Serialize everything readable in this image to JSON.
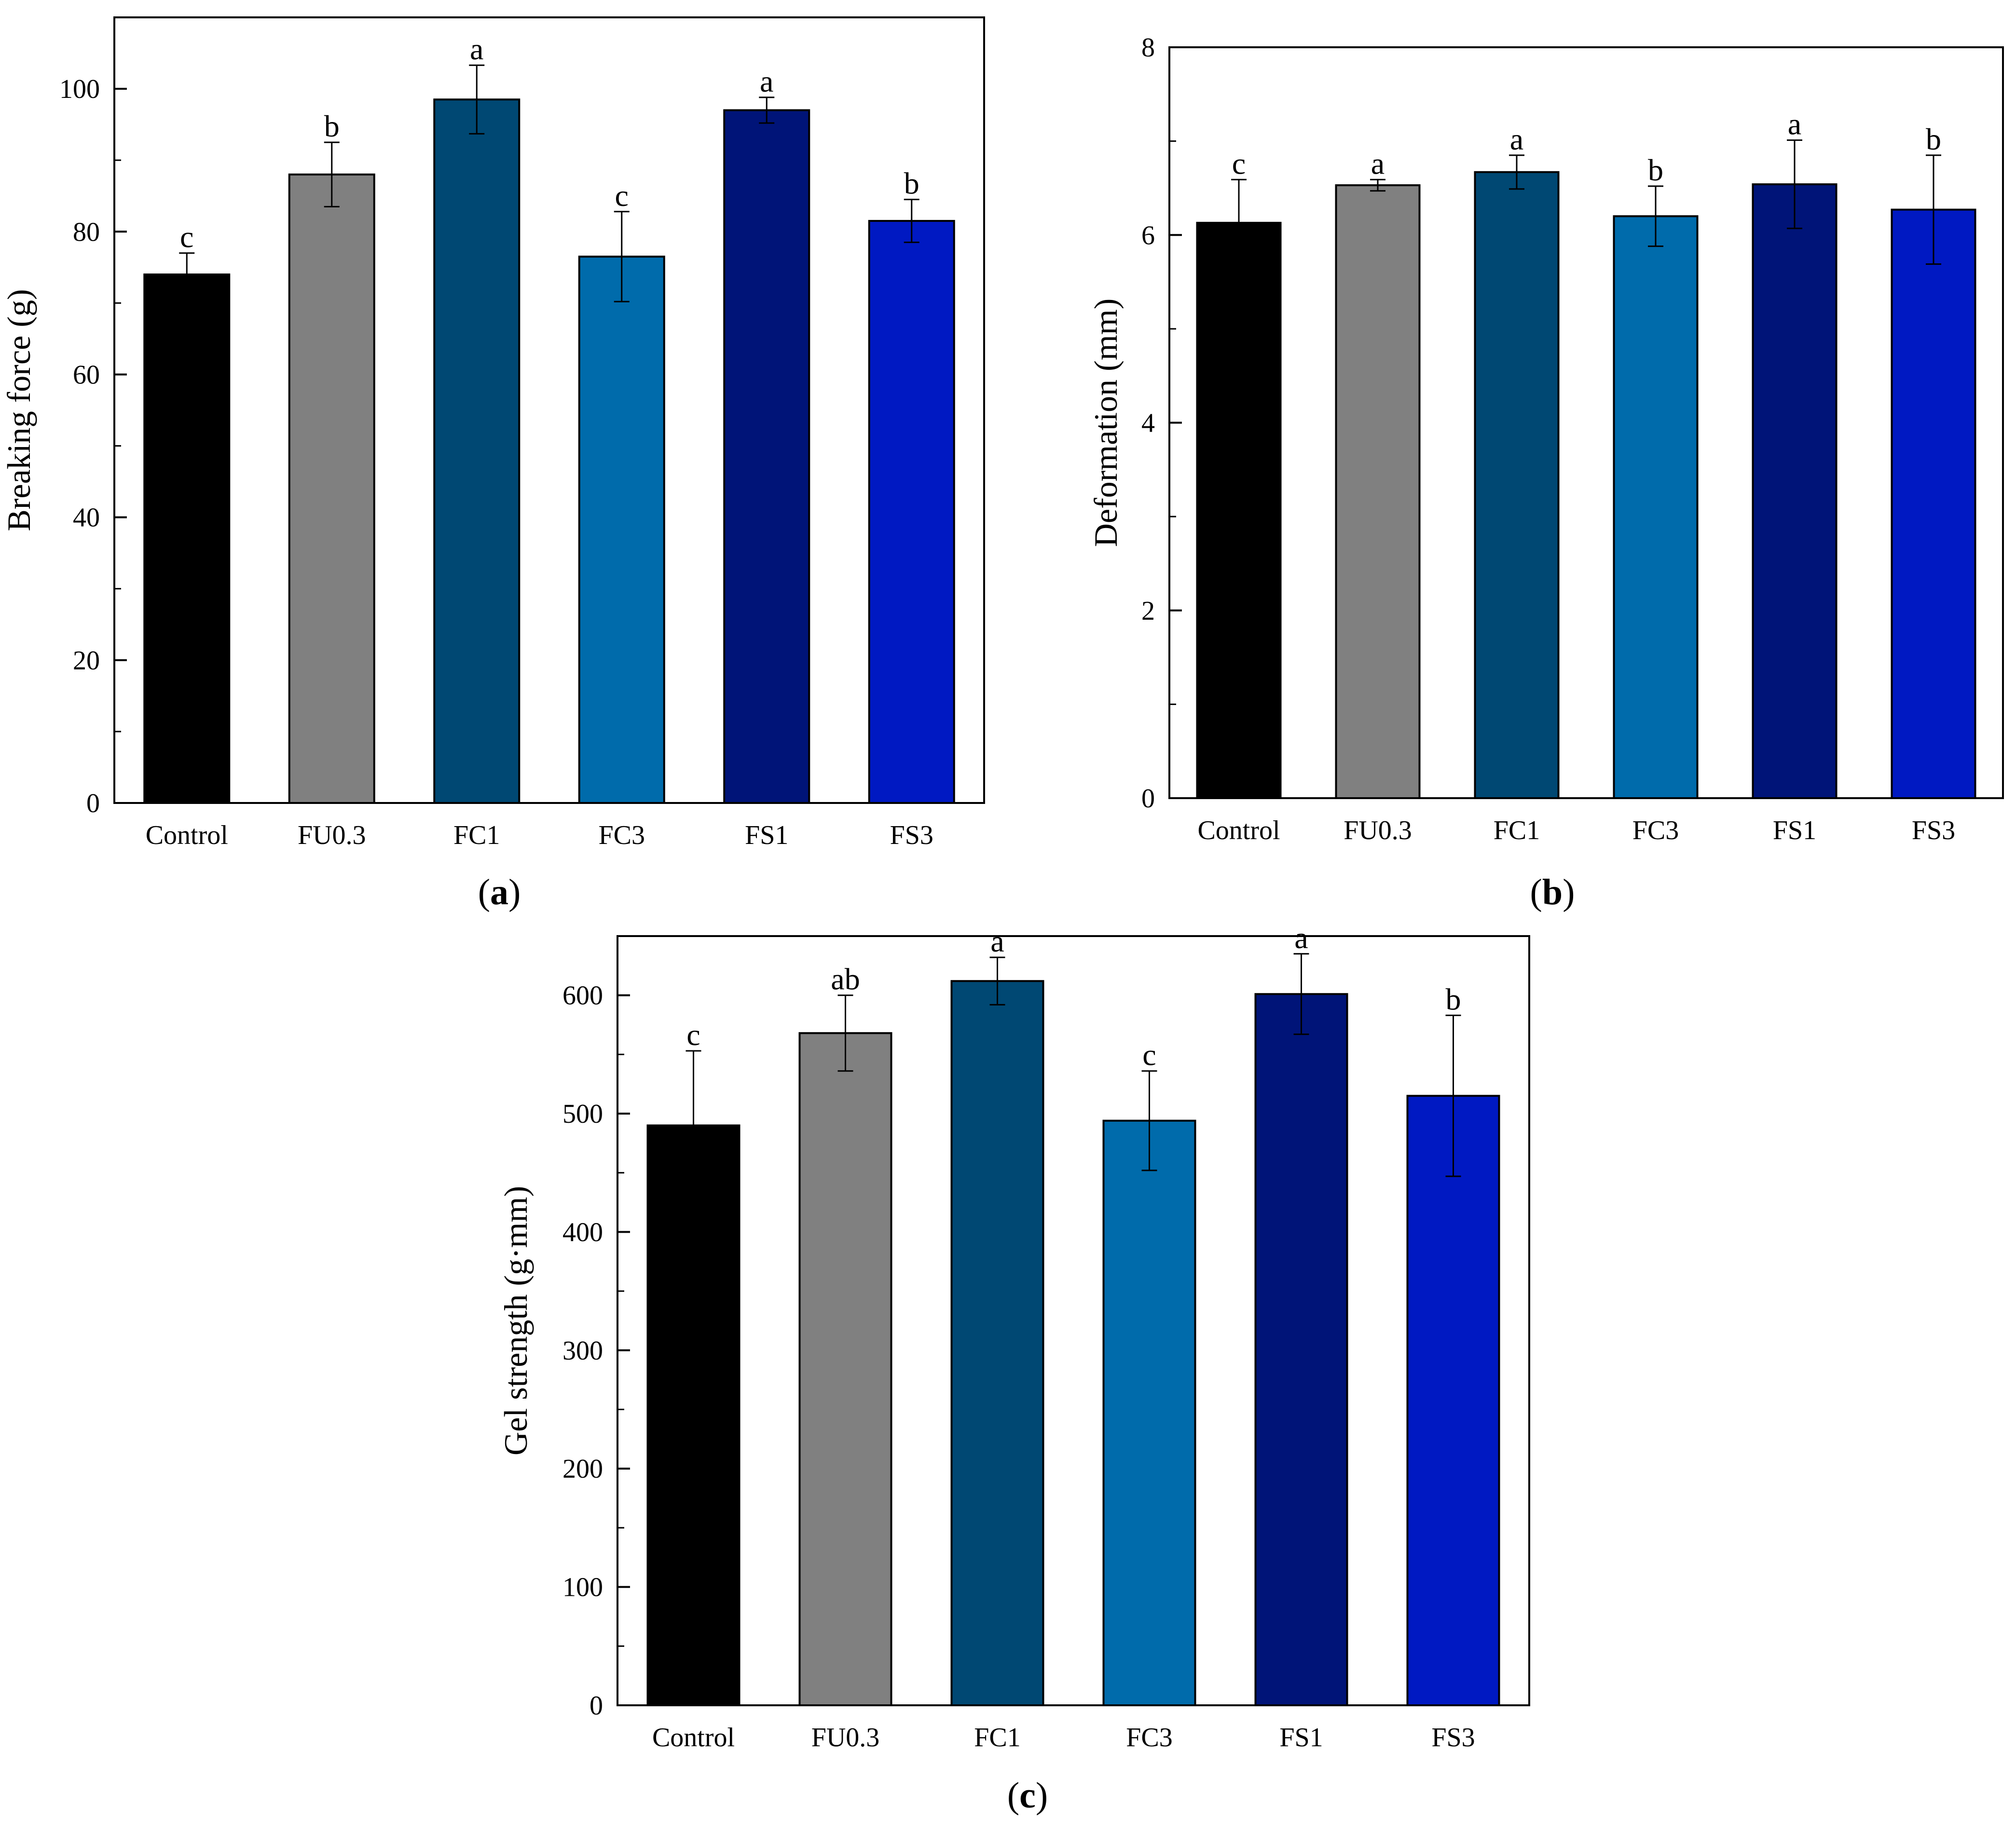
{
  "colors": {
    "Control": "#000000",
    "FU0.3": "#808080",
    "FC1": "#004873",
    "FC3": "#006bab",
    "FS1": "#001478",
    "FS3": "#0019c2"
  },
  "chart_data": [
    {
      "type": "bar",
      "panel": "a",
      "ylabel": "Breaking force (g)",
      "xlabel": "",
      "ylim": [
        0,
        110
      ],
      "yticks": [
        0,
        20,
        40,
        60,
        80,
        100
      ],
      "categories": [
        "Control",
        "FU0.3",
        "FC1",
        "FC3",
        "FS1",
        "FS3"
      ],
      "values": [
        74,
        88,
        98.5,
        76.5,
        97,
        81.5
      ],
      "errors": [
        3,
        4.5,
        4.8,
        6.3,
        1.8,
        3
      ],
      "letters": [
        "c",
        "b",
        "a",
        "c",
        "a",
        "b"
      ]
    },
    {
      "type": "bar",
      "panel": "b",
      "ylabel": "Deformation (mm)",
      "xlabel": "",
      "ylim": [
        0,
        8
      ],
      "yticks": [
        0,
        2,
        4,
        6,
        8
      ],
      "categories": [
        "Control",
        "FU0.3",
        "FC1",
        "FC3",
        "FS1",
        "FS3"
      ],
      "values": [
        6.13,
        6.53,
        6.67,
        6.2,
        6.54,
        6.27
      ],
      "errors": [
        0.46,
        0.06,
        0.18,
        0.32,
        0.47,
        0.58
      ],
      "letters": [
        "c",
        "a",
        "a",
        "b",
        "a",
        "b"
      ]
    },
    {
      "type": "bar",
      "panel": "c",
      "ylabel": "Gel strength (g·mm)",
      "xlabel": "",
      "ylim": [
        0,
        650
      ],
      "yticks": [
        0,
        100,
        200,
        300,
        400,
        500,
        600
      ],
      "categories": [
        "Control",
        "FU0.3",
        "FC1",
        "FC3",
        "FS1",
        "FS3"
      ],
      "values": [
        490,
        568,
        612,
        494,
        601,
        515
      ],
      "errors": [
        63,
        32,
        20,
        42,
        34,
        68
      ],
      "letters": [
        "c",
        "ab",
        "a",
        "c",
        "a",
        "b"
      ]
    }
  ]
}
